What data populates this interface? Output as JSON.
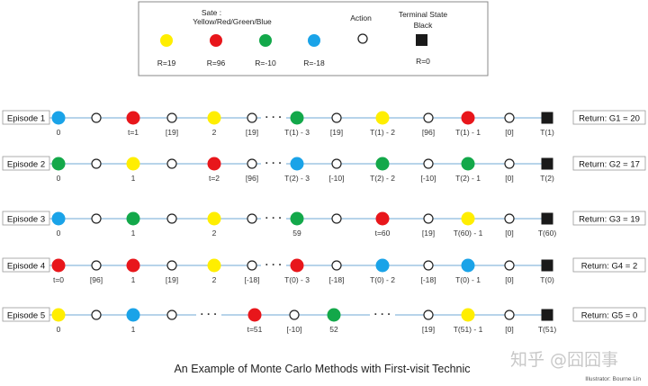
{
  "colors": {
    "yellow": "#ffee00",
    "red": "#e8161b",
    "green": "#13a84a",
    "blue": "#1aa3e8",
    "black": "#1a1a1a",
    "line": "#6fa8d6"
  },
  "legend": {
    "state_title": "Sate :",
    "state_subtitle": "Yellow/Red/Green/Blue",
    "action_title": "Action",
    "terminal_title": "Terminal State",
    "terminal_subtitle": "Black",
    "rewards": [
      "R=19",
      "R=96",
      "R=-10",
      "R=-18"
    ],
    "terminal_reward": "R=0"
  },
  "episodes": [
    {
      "label": "Episode 1",
      "return": "Return: G1 = 20",
      "nodes": [
        {
          "kind": "state",
          "color": "blue",
          "label": "0"
        },
        {
          "kind": "action",
          "label": ""
        },
        {
          "kind": "state",
          "color": "red",
          "label": "t=1"
        },
        {
          "kind": "action",
          "label": "[19]"
        },
        {
          "kind": "state",
          "color": "yellow",
          "label": "2"
        },
        {
          "kind": "action",
          "label": "[19]"
        },
        {
          "kind": "gap"
        },
        {
          "kind": "state",
          "color": "green",
          "label": "T(1) - 3"
        },
        {
          "kind": "action",
          "label": "[19]"
        },
        {
          "kind": "state",
          "color": "yellow",
          "label": "T(1) - 2"
        },
        {
          "kind": "action",
          "label": "[96]"
        },
        {
          "kind": "state",
          "color": "red",
          "label": "T(1) - 1"
        },
        {
          "kind": "action",
          "label": "[0]"
        },
        {
          "kind": "terminal",
          "label": "T(1)"
        }
      ]
    },
    {
      "label": "Episode 2",
      "return": "Return: G2 = 17",
      "nodes": [
        {
          "kind": "state",
          "color": "green",
          "label": "0"
        },
        {
          "kind": "action",
          "label": ""
        },
        {
          "kind": "state",
          "color": "yellow",
          "label": "1"
        },
        {
          "kind": "action",
          "label": ""
        },
        {
          "kind": "state",
          "color": "red",
          "label": "t=2"
        },
        {
          "kind": "action",
          "label": "[96]"
        },
        {
          "kind": "gap"
        },
        {
          "kind": "state",
          "color": "blue",
          "label": "T(2) - 3"
        },
        {
          "kind": "action",
          "label": "[-10]"
        },
        {
          "kind": "state",
          "color": "green",
          "label": "T(2) - 2"
        },
        {
          "kind": "action",
          "label": "[-10]"
        },
        {
          "kind": "state",
          "color": "green",
          "label": "T(2) - 1"
        },
        {
          "kind": "action",
          "label": "[0]"
        },
        {
          "kind": "terminal",
          "label": "T(2)"
        }
      ]
    },
    {
      "label": "Episode 3",
      "return": "Return: G3 = 19",
      "nodes": [
        {
          "kind": "state",
          "color": "blue",
          "label": "0"
        },
        {
          "kind": "action",
          "label": ""
        },
        {
          "kind": "state",
          "color": "green",
          "label": "1"
        },
        {
          "kind": "action",
          "label": ""
        },
        {
          "kind": "state",
          "color": "yellow",
          "label": "2"
        },
        {
          "kind": "action",
          "label": ""
        },
        {
          "kind": "gap"
        },
        {
          "kind": "state",
          "color": "green",
          "label": "59"
        },
        {
          "kind": "action",
          "label": ""
        },
        {
          "kind": "state",
          "color": "red",
          "label": "t=60"
        },
        {
          "kind": "action",
          "label": "[19]"
        },
        {
          "kind": "state",
          "color": "yellow",
          "label": "T(60) - 1"
        },
        {
          "kind": "action",
          "label": "[0]"
        },
        {
          "kind": "terminal",
          "label": "T(60)"
        }
      ]
    },
    {
      "label": "Episode 4",
      "return": "Return: G4 = 2",
      "nodes": [
        {
          "kind": "state",
          "color": "red",
          "label": "t=0"
        },
        {
          "kind": "action",
          "label": "[96]"
        },
        {
          "kind": "state",
          "color": "red",
          "label": "1"
        },
        {
          "kind": "action",
          "label": "[19]"
        },
        {
          "kind": "state",
          "color": "yellow",
          "label": "2"
        },
        {
          "kind": "action",
          "label": "[-18]"
        },
        {
          "kind": "gap"
        },
        {
          "kind": "state",
          "color": "red",
          "label": "T(0) - 3"
        },
        {
          "kind": "action",
          "label": "[-18]"
        },
        {
          "kind": "state",
          "color": "blue",
          "label": "T(0) - 2"
        },
        {
          "kind": "action",
          "label": "[-18]"
        },
        {
          "kind": "state",
          "color": "blue",
          "label": "T(0) - 1"
        },
        {
          "kind": "action",
          "label": "[0]"
        },
        {
          "kind": "terminal",
          "label": "T(0)"
        }
      ]
    },
    {
      "label": "Episode 5",
      "return": "Return: G5 = 0",
      "nodes": [
        {
          "kind": "state",
          "color": "yellow",
          "label": "0"
        },
        {
          "kind": "action",
          "label": ""
        },
        {
          "kind": "state",
          "color": "blue",
          "label": "1"
        },
        {
          "kind": "action",
          "label": ""
        },
        {
          "kind": "gap"
        },
        {
          "kind": "state",
          "color": "red",
          "label": "t=51"
        },
        {
          "kind": "action",
          "label": "[-10]"
        },
        {
          "kind": "state",
          "color": "green",
          "label": "52"
        },
        {
          "kind": "gap"
        },
        {
          "kind": "action",
          "label": "[19]"
        },
        {
          "kind": "state",
          "color": "yellow",
          "label": "T(51) - 1"
        },
        {
          "kind": "action",
          "label": "[0]"
        },
        {
          "kind": "terminal",
          "label": "T(51)"
        }
      ]
    }
  ],
  "caption": "An Example of Monte Carlo Methods with First-visit Technic",
  "credit": "Illustrator: Bourne Lin",
  "watermark": "知乎 @囧囧事"
}
